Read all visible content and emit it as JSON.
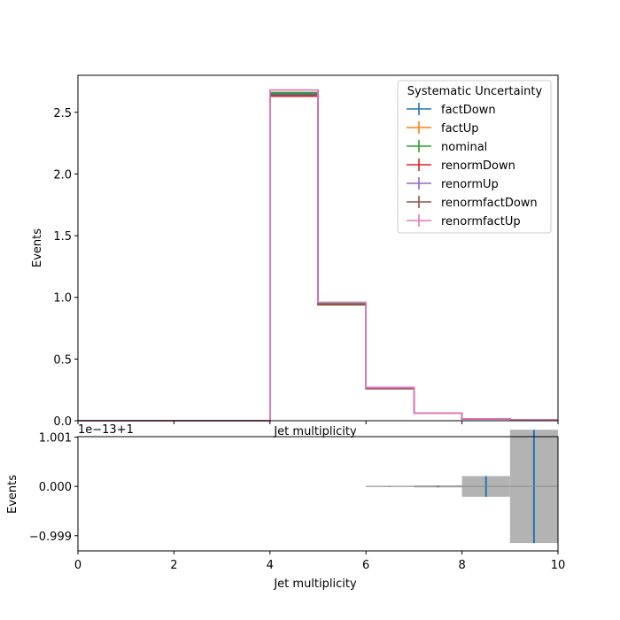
{
  "chart_data": [
    {
      "type": "step",
      "xlabel": "Jet multiplicity",
      "ylabel": "Events",
      "xlim": [
        0,
        10
      ],
      "ylim": [
        0,
        2.8
      ],
      "yticks": [
        "0.0",
        "0.5",
        "1.0",
        "1.5",
        "2.0",
        "2.5"
      ],
      "bin_edges": [
        0,
        1,
        2,
        3,
        4,
        5,
        6,
        7,
        8,
        9,
        10
      ],
      "legend": {
        "title": "Systematic Uncertainty",
        "placement": "top-right"
      },
      "series": [
        {
          "name": "factDown",
          "color": "#1f77b4",
          "values": [
            0,
            0,
            0,
            0,
            2.65,
            0.95,
            0.27,
            0.06,
            0.015,
            0.006
          ]
        },
        {
          "name": "factUp",
          "color": "#ff7f0e",
          "values": [
            0,
            0,
            0,
            0,
            2.66,
            0.95,
            0.27,
            0.06,
            0.015,
            0.006
          ]
        },
        {
          "name": "nominal",
          "color": "#2ca02c",
          "values": [
            0,
            0,
            0,
            0,
            2.66,
            0.95,
            0.27,
            0.06,
            0.015,
            0.006
          ]
        },
        {
          "name": "renormDown",
          "color": "#d62728",
          "values": [
            0,
            0,
            0,
            0,
            2.63,
            0.94,
            0.26,
            0.06,
            0.015,
            0.006
          ]
        },
        {
          "name": "renormUp",
          "color": "#9467bd",
          "values": [
            0,
            0,
            0,
            0,
            2.68,
            0.96,
            0.27,
            0.06,
            0.016,
            0.006
          ]
        },
        {
          "name": "renormfactDown",
          "color": "#8c564b",
          "values": [
            0,
            0,
            0,
            0,
            2.64,
            0.94,
            0.26,
            0.06,
            0.015,
            0.006
          ]
        },
        {
          "name": "renormfactUp",
          "color": "#e377c2",
          "values": [
            0,
            0,
            0,
            0,
            2.68,
            0.96,
            0.27,
            0.06,
            0.016,
            0.006
          ]
        }
      ]
    },
    {
      "type": "ratio",
      "xlabel": "Jet multiplicity",
      "ylabel": "Events",
      "offset_label": "1e−13+1",
      "xlim": [
        0,
        10
      ],
      "xticks": [
        "0",
        "2",
        "4",
        "6",
        "8",
        "10"
      ],
      "yticks": [
        {
          "value": 0.001,
          "label": "1.001"
        },
        {
          "value": 0.0,
          "label": "0.000"
        },
        {
          "value": -0.001,
          "label": "−0.999"
        }
      ],
      "ylim": [
        -0.00131,
        0.00101
      ],
      "band_color": "#b3b3b3",
      "line_color": "#1f77b4",
      "bins": [
        {
          "x0": 6,
          "x1": 7,
          "half_width": 1e-05
        },
        {
          "x0": 7,
          "x1": 8,
          "half_width": 2e-05
        },
        {
          "x0": 8,
          "x1": 9,
          "half_width": 0.00021
        },
        {
          "x0": 9,
          "x1": 10,
          "half_width": 0.00115
        }
      ]
    }
  ]
}
